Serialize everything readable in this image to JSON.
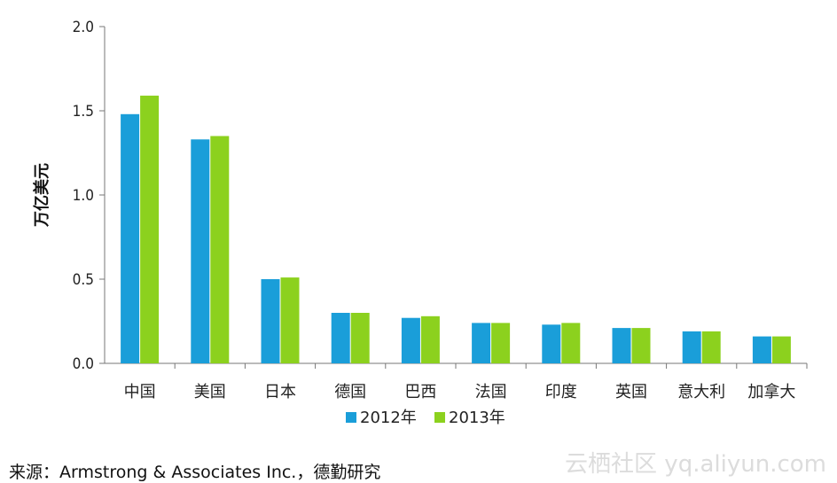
{
  "chart_data": {
    "type": "bar",
    "categories": [
      "中国",
      "美国",
      "日本",
      "德国",
      "巴西",
      "法国",
      "印度",
      "英国",
      "意大利",
      "加拿大"
    ],
    "series": [
      {
        "name": "2012年",
        "color": "#1a9ed9",
        "values": [
          1.48,
          1.33,
          0.5,
          0.3,
          0.27,
          0.24,
          0.23,
          0.21,
          0.19,
          0.16
        ]
      },
      {
        "name": "2013年",
        "color": "#8cd11e",
        "values": [
          1.59,
          1.35,
          0.51,
          0.3,
          0.28,
          0.24,
          0.24,
          0.21,
          0.19,
          0.16
        ]
      }
    ],
    "title": "",
    "xlabel": "",
    "ylabel": "万亿美元",
    "ylim": [
      0,
      2.0
    ],
    "yticks": [
      "0.0",
      "0.5",
      "1.0",
      "1.5",
      "2.0"
    ],
    "grid": false,
    "legend_position": "bottom"
  },
  "source": "来源：Armstrong & Associates Inc.，德勤研究",
  "watermark": "云栖社区 yq.aliyun.com"
}
